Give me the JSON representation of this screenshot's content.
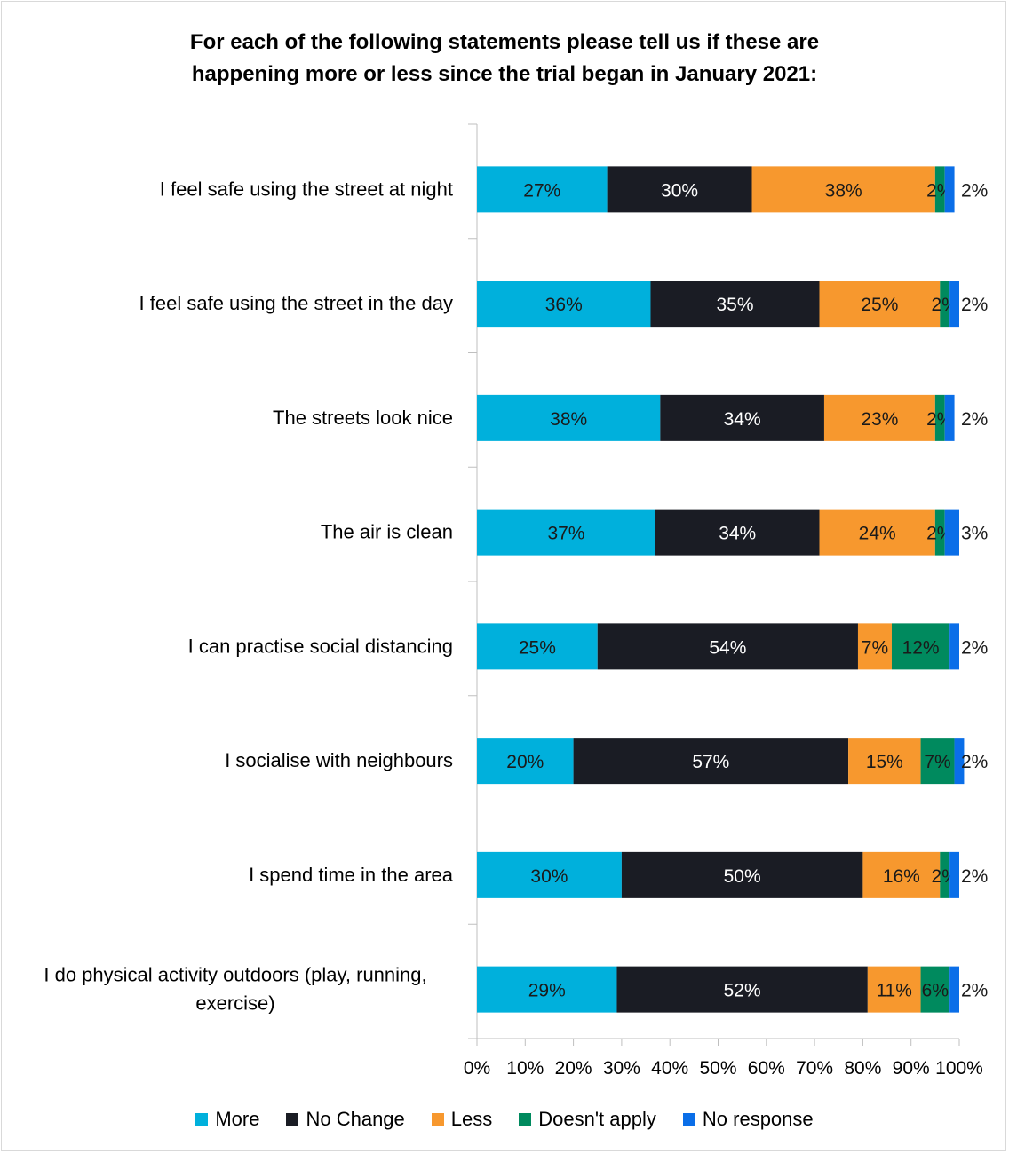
{
  "chart_data": {
    "type": "bar",
    "orientation": "horizontal",
    "stacked": true,
    "title": "For each of the following statements please tell us if these are happening more or less since the trial began in January 2021:",
    "title_lines": [
      "For each of the following statements please tell us if these are",
      "happening more or less since the trial began in January 2021:"
    ],
    "categories": [
      "I feel safe using the street at night",
      "I feel safe using the street in the day",
      "The streets look nice",
      "The air is clean",
      "I can practise social distancing",
      "I socialise with neighbours",
      "I spend time in the area",
      "I do physical activity outdoors (play, running, exercise)"
    ],
    "category_lines": [
      [
        "I feel safe using the street at night"
      ],
      [
        "I feel safe using the street in the day"
      ],
      [
        "The streets look nice"
      ],
      [
        "The air is clean"
      ],
      [
        "I can practise social distancing"
      ],
      [
        "I socialise with neighbours"
      ],
      [
        "I spend time in the area"
      ],
      [
        "I do physical activity outdoors (play, running,",
        "exercise)"
      ]
    ],
    "series": [
      {
        "name": "More",
        "color": "#00b0dc",
        "values": [
          27,
          36,
          38,
          37,
          25,
          20,
          30,
          29
        ]
      },
      {
        "name": "No Change",
        "color": "#1a1c24",
        "values": [
          30,
          35,
          34,
          34,
          54,
          57,
          50,
          52
        ]
      },
      {
        "name": "Less",
        "color": "#f7982e",
        "values": [
          38,
          25,
          23,
          24,
          7,
          15,
          16,
          11
        ]
      },
      {
        "name": "Doesn't apply",
        "color": "#008a5e",
        "values": [
          2,
          2,
          2,
          2,
          12,
          7,
          2,
          6
        ]
      },
      {
        "name": "No response",
        "color": "#0a6ee8",
        "values": [
          2,
          2,
          2,
          3,
          2,
          2,
          2,
          2
        ]
      }
    ],
    "data_label_suffix": "%",
    "xlim": [
      0,
      100
    ],
    "x_ticks": [
      "0%",
      "10%",
      "20%",
      "30%",
      "40%",
      "50%",
      "60%",
      "70%",
      "80%",
      "90%",
      "100%"
    ],
    "legend_position": "bottom",
    "grid": false
  }
}
